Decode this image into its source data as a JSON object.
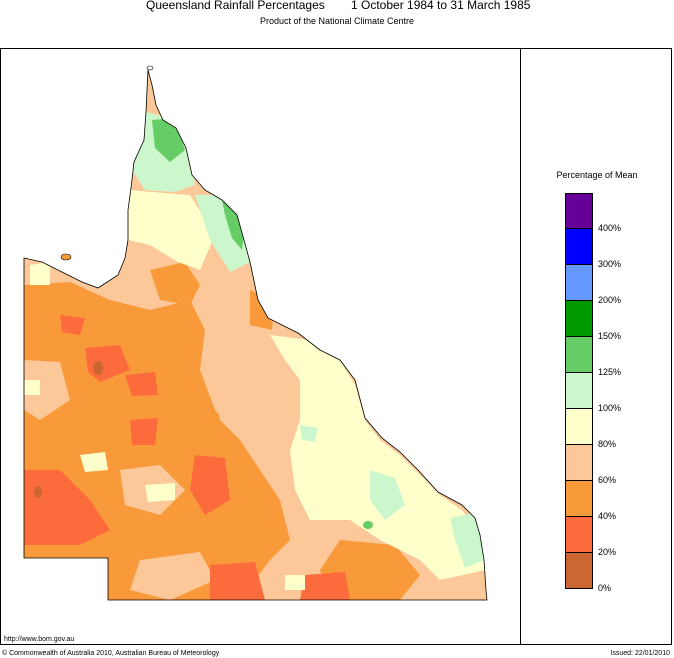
{
  "header": {
    "title": "Queensland Rainfall Percentages",
    "period": "1 October 1984 to 31 March 1985",
    "subtitle": "Product of the National Climate Centre"
  },
  "legend": {
    "title": "Percentage of Mean",
    "bins": [
      {
        "label": "400%",
        "color": "#660099"
      },
      {
        "label": "300%",
        "color": "#0000ff"
      },
      {
        "label": "200%",
        "color": "#6699ff"
      },
      {
        "label": "150%",
        "color": "#009900"
      },
      {
        "label": "125%",
        "color": "#66cc66"
      },
      {
        "label": "100%",
        "color": "#ccf7cc"
      },
      {
        "label": "80%",
        "color": "#ffffcc"
      },
      {
        "label": "60%",
        "color": "#fcc899"
      },
      {
        "label": "40%",
        "color": "#f99a3a"
      },
      {
        "label": "20%",
        "color": "#fb6b3c"
      },
      {
        "label": "0%",
        "color": "#cc6633"
      }
    ]
  },
  "footer": {
    "url": "http://www.bom.gov.au",
    "copyright": "© Commonwealth of Australia 2010, Australian Bureau of Meteorology",
    "issued": "Issued: 22/01/2010"
  }
}
